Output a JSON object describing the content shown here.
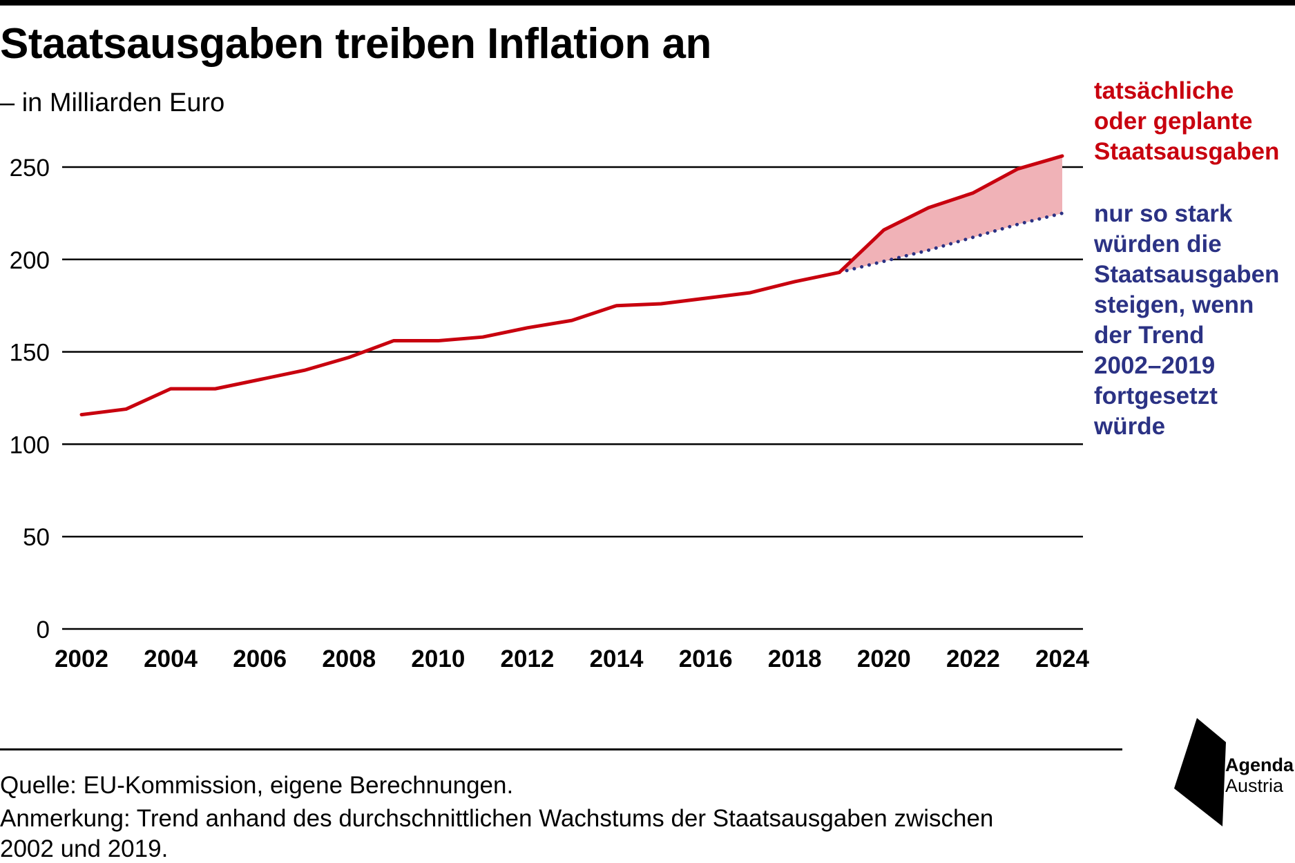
{
  "title": "Staatsausgaben treiben Inflation an",
  "subtitle": "– in Milliarden Euro",
  "annotations": {
    "actual": [
      "tatsächliche",
      "oder geplante",
      "Staatsausgaben"
    ],
    "trend": [
      "nur so stark",
      "würden die",
      "Staatsausgaben",
      "steigen, wenn",
      "der Trend",
      "2002–2019",
      "fortgesetzt",
      "würde"
    ]
  },
  "footer": {
    "source": "Quelle: EU-Kommission, eigene Berechnungen.",
    "note_line1": "Anmerkung: Trend anhand des durchschnittlichen Wachstums der Staatsausgaben zwischen",
    "note_line2": "2002 und 2019."
  },
  "logo": {
    "line1": "Agenda",
    "line2": "Austria",
    "icon": "agenda-austria-logo-icon"
  },
  "colors": {
    "actual_line": "#c8000e",
    "gap_fill": "#f0b2b7",
    "trend_line": "#2b3284",
    "grid": "#000000"
  },
  "chart_data": {
    "type": "line",
    "title": "Staatsausgaben treiben Inflation an",
    "subtitle": "– in Milliarden Euro",
    "xlabel": "",
    "ylabel": "",
    "x_ticks": [
      "2002",
      "2004",
      "2006",
      "2008",
      "2010",
      "2012",
      "2014",
      "2016",
      "2018",
      "2020",
      "2022",
      "2024"
    ],
    "y_ticks": [
      "0",
      "50",
      "100",
      "150",
      "200",
      "250"
    ],
    "xlim": [
      2002,
      2024
    ],
    "ylim": [
      0,
      250
    ],
    "grid": "horizontal",
    "series": [
      {
        "id": "actual",
        "style": "solid",
        "x": [
          2002,
          2003,
          2004,
          2005,
          2006,
          2007,
          2008,
          2009,
          2010,
          2011,
          2012,
          2013,
          2014,
          2015,
          2016,
          2017,
          2018,
          2019,
          2020,
          2021,
          2022,
          2023,
          2024
        ],
        "values": [
          116,
          119,
          130,
          130,
          135,
          140,
          147,
          156,
          156,
          158,
          163,
          167,
          175,
          176,
          179,
          182,
          188,
          193,
          216,
          228,
          236,
          249,
          256
        ]
      },
      {
        "id": "trend",
        "style": "dotted",
        "x": [
          2019,
          2020,
          2021,
          2022,
          2023,
          2024
        ],
        "values": [
          193,
          199,
          205,
          212,
          219,
          225
        ]
      }
    ]
  }
}
